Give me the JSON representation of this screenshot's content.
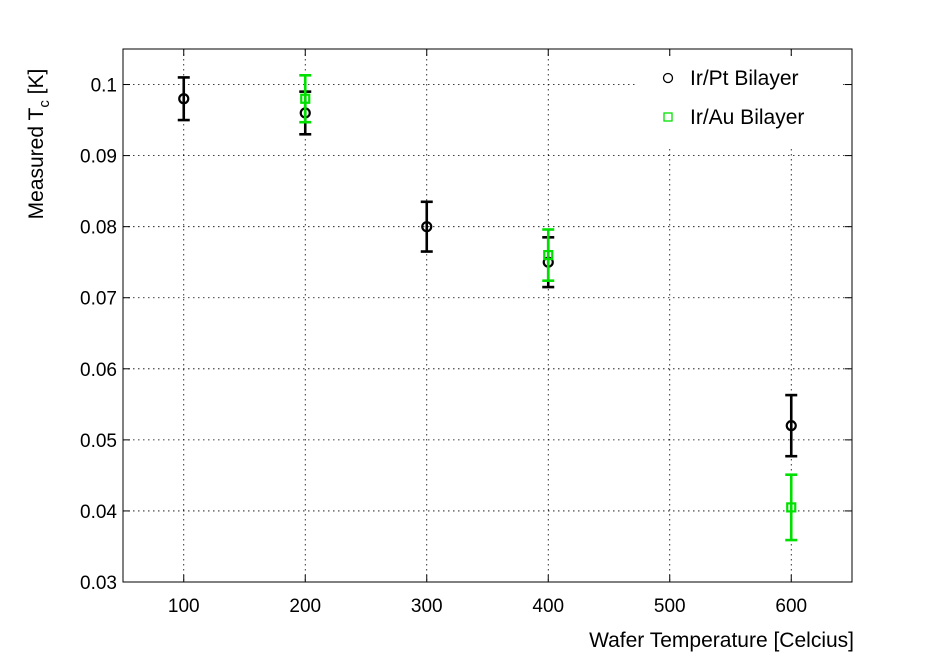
{
  "chart_data": {
    "type": "scatter",
    "title": "",
    "xlabel": "Wafer Temperature [Celcius]",
    "ylabel": {
      "main": "Measured T",
      "sub": "c",
      "unit": " [K]"
    },
    "xlim": [
      50,
      650
    ],
    "ylim": [
      0.03,
      0.105
    ],
    "xticks": [
      100,
      200,
      300,
      400,
      500,
      600
    ],
    "xtick_labels": [
      "100",
      "200",
      "300",
      "400",
      "500",
      "600"
    ],
    "yticks": [
      0.03,
      0.04,
      0.05,
      0.06,
      0.07,
      0.08,
      0.09,
      0.1
    ],
    "ytick_labels": [
      "0.03",
      "0.04",
      "0.05",
      "0.06",
      "0.07",
      "0.08",
      "0.09",
      "0.1"
    ],
    "grid": true,
    "legend_position": "top-right",
    "series": [
      {
        "name": "Ir/Pt Bilayer",
        "marker": "circle",
        "color": "#000000",
        "x": [
          100,
          200,
          300,
          400,
          600
        ],
        "y": [
          0.098,
          0.096,
          0.08,
          0.075,
          0.052
        ],
        "err": [
          0.003,
          0.003,
          0.0035,
          0.0035,
          0.0043
        ]
      },
      {
        "name": "Ir/Au Bilayer",
        "marker": "square",
        "color": "#00e000",
        "x": [
          200,
          400,
          600
        ],
        "y": [
          0.098,
          0.076,
          0.0405
        ],
        "err": [
          0.0033,
          0.0036,
          0.0046
        ]
      }
    ]
  }
}
